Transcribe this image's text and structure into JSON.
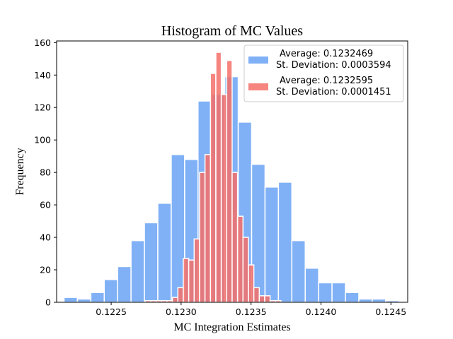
{
  "chart_data": {
    "type": "bar",
    "title": "Histogram of MC Values",
    "xlabel": "MC Integration Estimates",
    "ylabel": "Frequency",
    "xlim": [
      0.12211,
      0.12462
    ],
    "ylim": [
      0,
      161
    ],
    "xticks": [
      {
        "value": 0.1225,
        "label": "0.1225"
      },
      {
        "value": 0.123,
        "label": "0.1230"
      },
      {
        "value": 0.1235,
        "label": "0.1235"
      },
      {
        "value": 0.124,
        "label": "0.1240"
      },
      {
        "value": 0.1245,
        "label": "0.1245"
      }
    ],
    "yticks": [
      0,
      20,
      40,
      60,
      80,
      100,
      120,
      140,
      160
    ],
    "grid": false,
    "legend_position": "top-right",
    "series": [
      {
        "legend_line1": "Average: 0.1232469",
        "legend_line2": "St. Deviation: 0.0003594",
        "color": "#6ea6f5",
        "x_start": 0.122163,
        "bin_width": 9.58e-05,
        "values": [
          3,
          2,
          6,
          14,
          22,
          38,
          49,
          61,
          91,
          88,
          124,
          128,
          139,
          111,
          85,
          71,
          74,
          38,
          21,
          12,
          12,
          6,
          2,
          2,
          1
        ]
      },
      {
        "legend_line1": "Average: 0.1232595",
        "legend_line2": "St. Deviation: 0.0001451",
        "color": "#f47068",
        "x_start": 0.122744,
        "bin_width": 3.88e-05,
        "values": [
          1,
          1,
          1,
          1,
          1,
          3,
          9,
          27,
          26,
          39,
          80,
          91,
          141,
          154,
          128,
          149,
          80,
          53,
          40,
          23,
          9,
          4,
          4,
          1,
          1
        ]
      }
    ]
  }
}
